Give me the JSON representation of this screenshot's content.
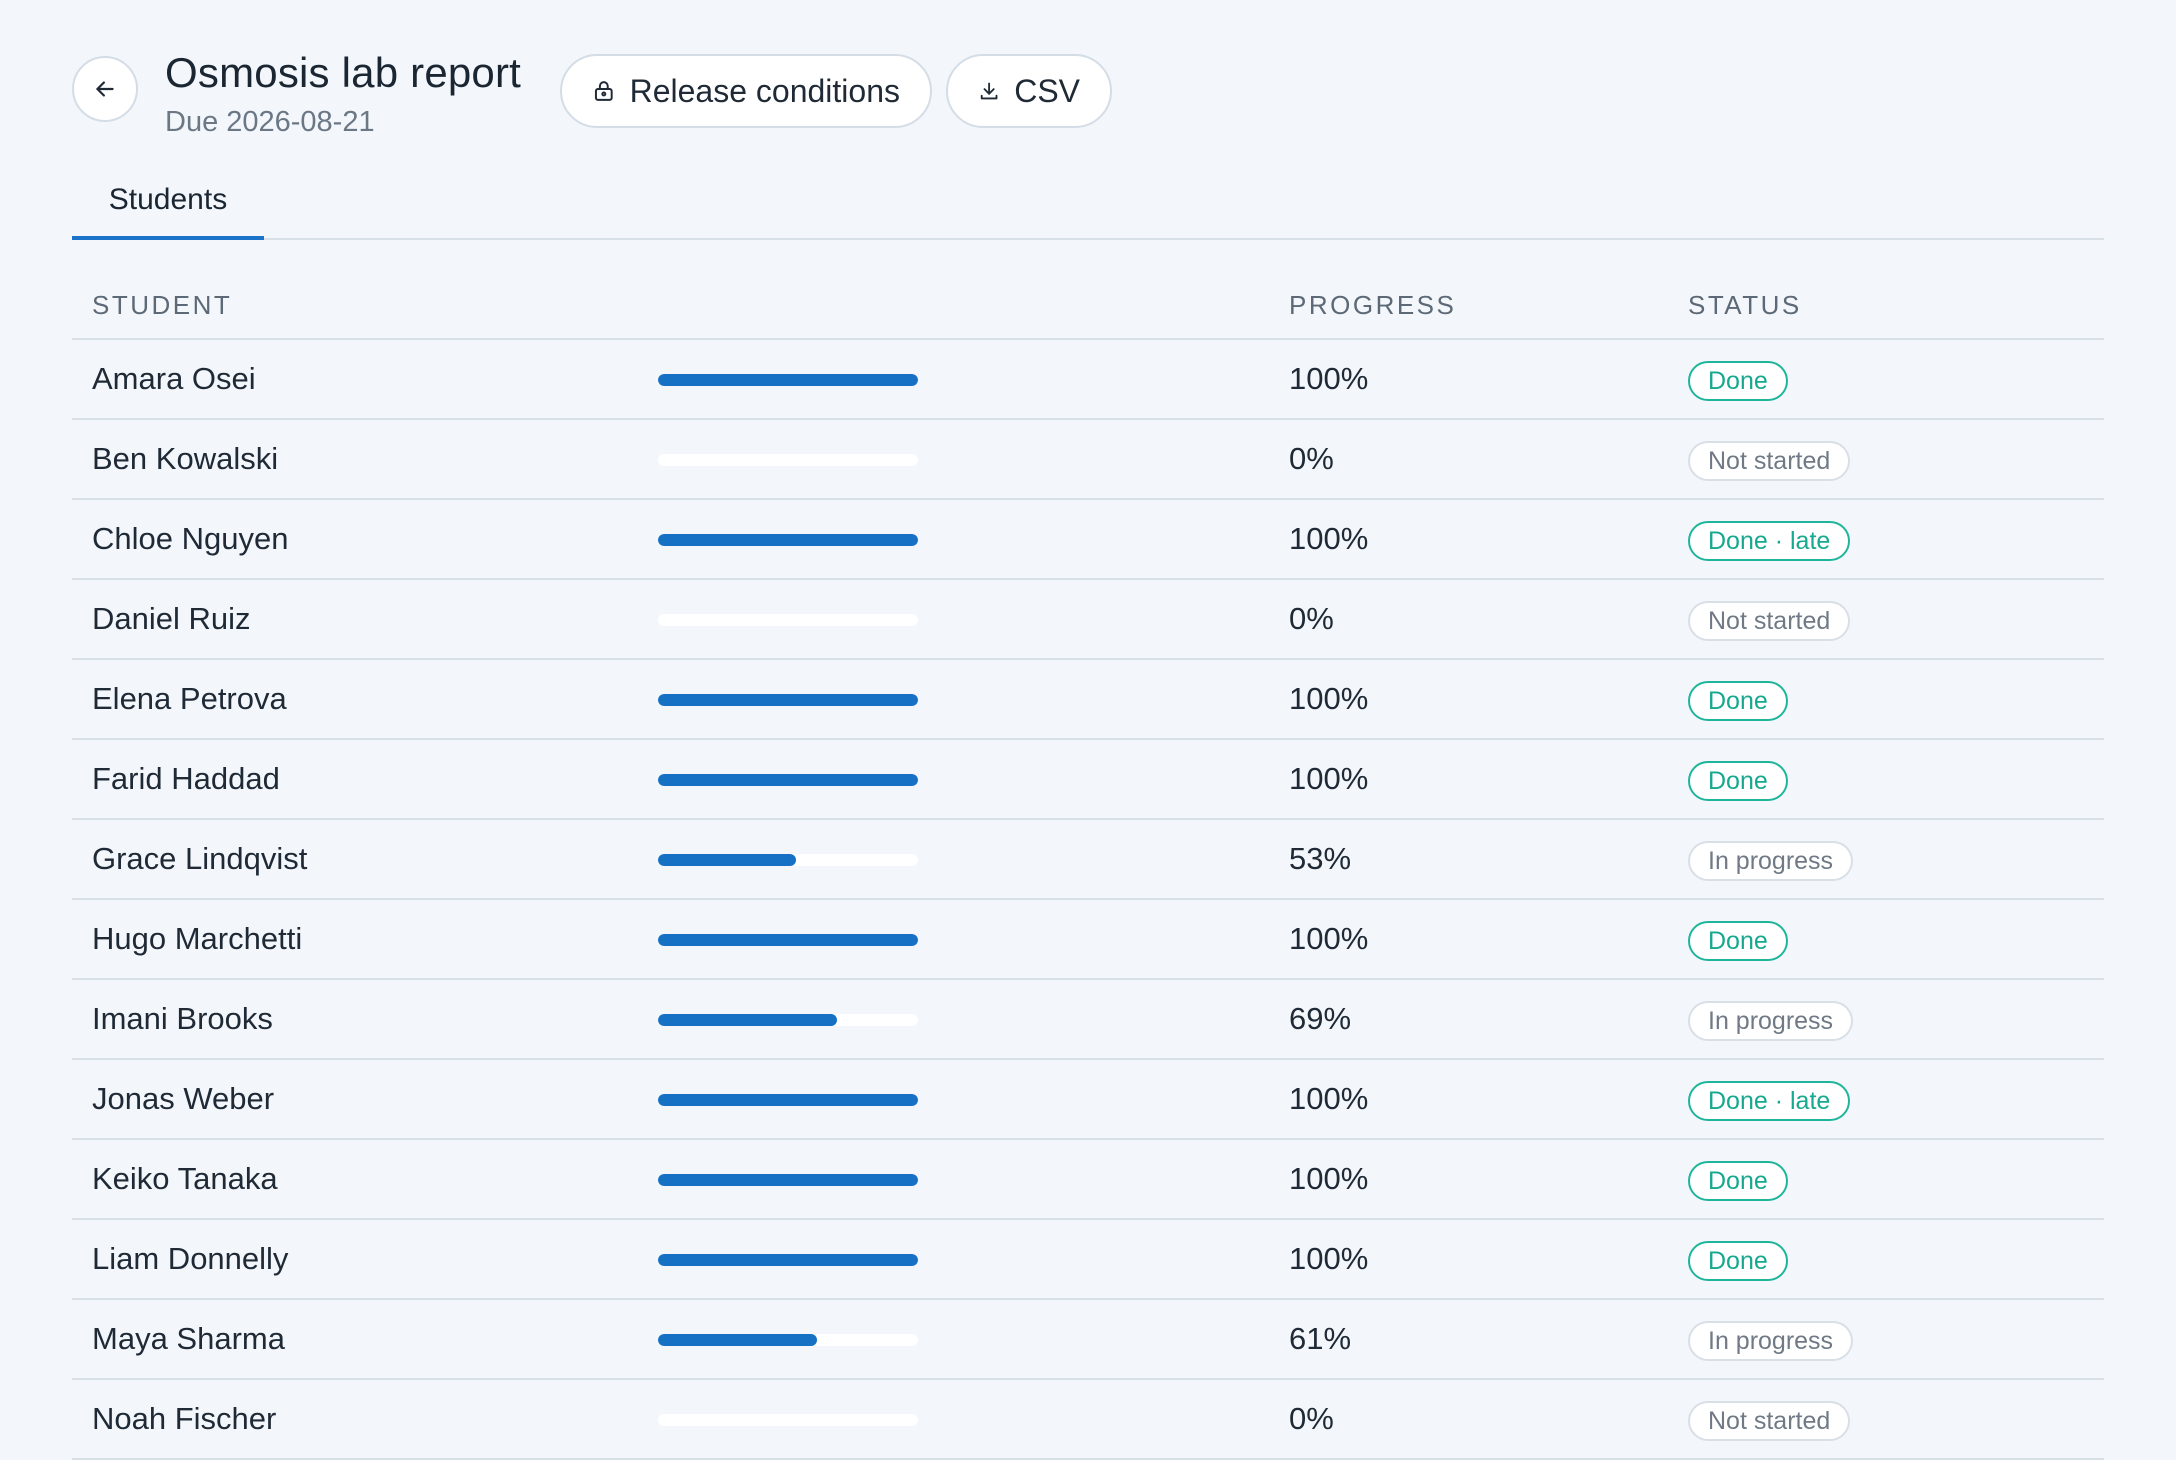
{
  "header": {
    "title": "Osmosis lab report",
    "due": "Due 2026-08-21",
    "back_icon": "arrow-left-icon",
    "release_label": "Release conditions",
    "release_icon": "lock-icon",
    "csv_label": "CSV",
    "csv_icon": "download-icon"
  },
  "tabs": [
    {
      "label": "Students",
      "active": true
    }
  ],
  "table": {
    "columns": {
      "student": "STUDENT",
      "progress": "PROGRESS",
      "status": "STATUS"
    },
    "rows": [
      {
        "name": "Amara Osei",
        "progress": 100,
        "progress_label": "100%",
        "status": "Done",
        "status_kind": "done"
      },
      {
        "name": "Ben Kowalski",
        "progress": 0,
        "progress_label": "0%",
        "status": "Not started",
        "status_kind": "neutral"
      },
      {
        "name": "Chloe Nguyen",
        "progress": 100,
        "progress_label": "100%",
        "status": "Done · late",
        "status_kind": "done"
      },
      {
        "name": "Daniel Ruiz",
        "progress": 0,
        "progress_label": "0%",
        "status": "Not started",
        "status_kind": "neutral"
      },
      {
        "name": "Elena Petrova",
        "progress": 100,
        "progress_label": "100%",
        "status": "Done",
        "status_kind": "done"
      },
      {
        "name": "Farid Haddad",
        "progress": 100,
        "progress_label": "100%",
        "status": "Done",
        "status_kind": "done"
      },
      {
        "name": "Grace Lindqvist",
        "progress": 53,
        "progress_label": "53%",
        "status": "In progress",
        "status_kind": "neutral"
      },
      {
        "name": "Hugo Marchetti",
        "progress": 100,
        "progress_label": "100%",
        "status": "Done",
        "status_kind": "done"
      },
      {
        "name": "Imani Brooks",
        "progress": 69,
        "progress_label": "69%",
        "status": "In progress",
        "status_kind": "neutral"
      },
      {
        "name": "Jonas Weber",
        "progress": 100,
        "progress_label": "100%",
        "status": "Done · late",
        "status_kind": "done"
      },
      {
        "name": "Keiko Tanaka",
        "progress": 100,
        "progress_label": "100%",
        "status": "Done",
        "status_kind": "done"
      },
      {
        "name": "Liam Donnelly",
        "progress": 100,
        "progress_label": "100%",
        "status": "Done",
        "status_kind": "done"
      },
      {
        "name": "Maya Sharma",
        "progress": 61,
        "progress_label": "61%",
        "status": "In progress",
        "status_kind": "neutral"
      },
      {
        "name": "Noah Fischer",
        "progress": 0,
        "progress_label": "0%",
        "status": "Not started",
        "status_kind": "neutral"
      }
    ]
  },
  "colors": {
    "background": "#f3f7fb",
    "accent": "#1670c4",
    "done": "#17a98f",
    "neutral": "#6f7a86"
  }
}
